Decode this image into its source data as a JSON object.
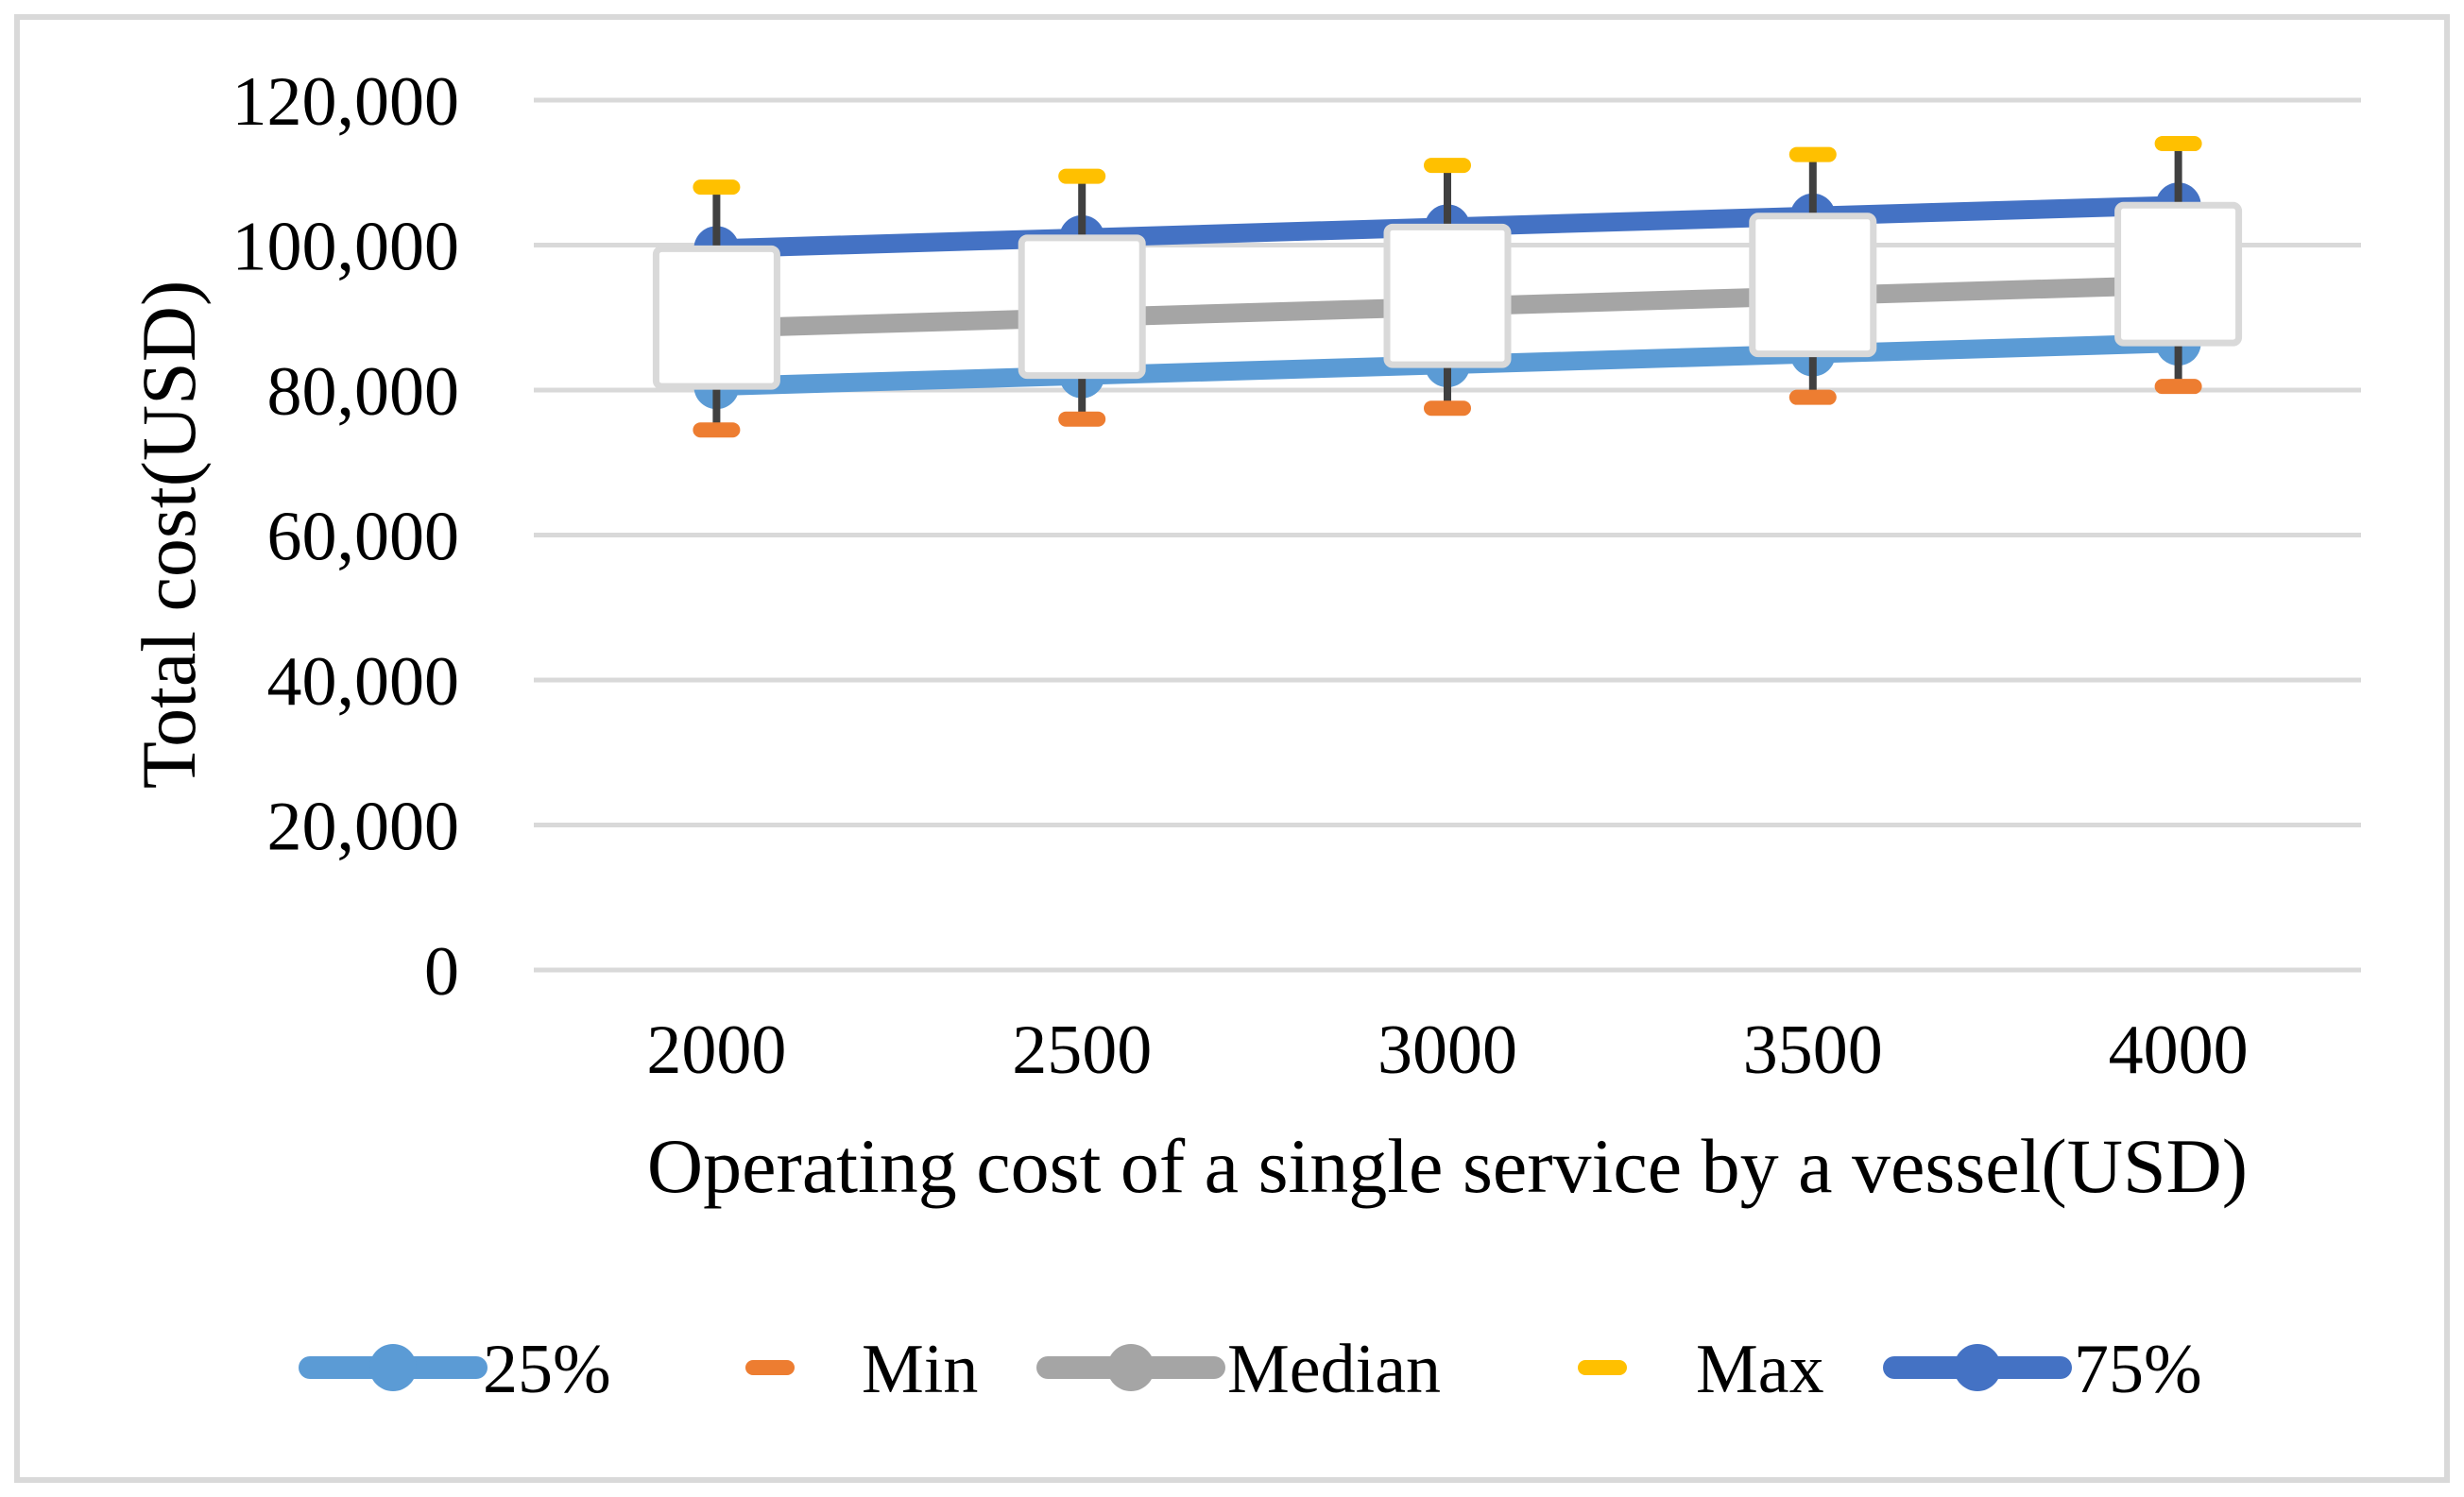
{
  "figure": {
    "description": "Box-and-whisker sensitivity chart of total cost versus vessel operating cost",
    "background": "#ffffff",
    "border_color": "#d9d9d9"
  },
  "chart_data": {
    "type": "boxplot",
    "title": "",
    "xlabel": "Operating cost of a single service by a vessel(USD)",
    "ylabel": "Total cost(USD)",
    "categories": [
      2000,
      2500,
      3000,
      3500,
      4000
    ],
    "x_tick_labels": [
      "2000",
      "2500",
      "3000",
      "3500",
      "4000"
    ],
    "y_ticks": [
      0,
      20000,
      40000,
      60000,
      80000,
      100000,
      120000
    ],
    "y_tick_labels": [
      "0",
      "20,000",
      "40,000",
      "60,000",
      "80,000",
      "100,000",
      "120,000"
    ],
    "ylim": [
      0,
      120000
    ],
    "grid": "horizontal",
    "grid_color": "#d9d9d9",
    "series": [
      {
        "name": "25%",
        "color": "#5B9BD5",
        "marker": "circle-line",
        "values": [
          80500,
          82000,
          83500,
          85000,
          86500
        ]
      },
      {
        "name": "Min",
        "color": "#ED7D31",
        "marker": "dash",
        "values": [
          74500,
          76000,
          77500,
          79000,
          80500
        ]
      },
      {
        "name": "Median",
        "color": "#A5A5A5",
        "marker": "circle-line",
        "values": [
          88500,
          90000,
          91500,
          93000,
          94500
        ]
      },
      {
        "name": "Max",
        "color": "#FFC000",
        "marker": "dash",
        "values": [
          108000,
          109500,
          111000,
          112500,
          114000
        ]
      },
      {
        "name": "75%",
        "color": "#4472C4",
        "marker": "circle-line",
        "values": [
          99500,
          101000,
          102500,
          104000,
          105500
        ]
      }
    ],
    "box": {
      "fill": "#FFFFFF",
      "border": "#D9D9D9",
      "whisker_color": "#404040",
      "lower_series": "25%",
      "upper_series": "75%",
      "whisker_low_series": "Min",
      "whisker_high_series": "Max"
    },
    "legend": {
      "position": "bottom",
      "items": [
        {
          "label": "25%",
          "marker": "circle-line",
          "color": "#5B9BD5"
        },
        {
          "label": "Min",
          "marker": "dash",
          "color": "#ED7D31"
        },
        {
          "label": "Median",
          "marker": "circle-line",
          "color": "#A5A5A5"
        },
        {
          "label": "Max",
          "marker": "dash",
          "color": "#FFC000"
        },
        {
          "label": "75%",
          "marker": "circle-line",
          "color": "#4472C4"
        }
      ]
    }
  }
}
